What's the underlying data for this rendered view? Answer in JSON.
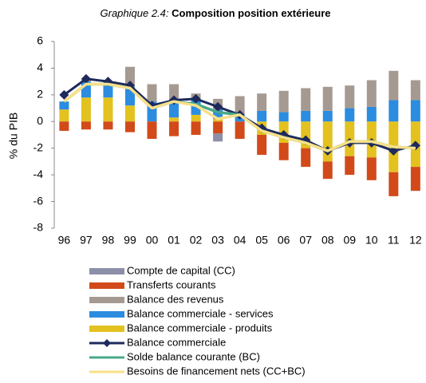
{
  "chart_data": {
    "type": "bar",
    "title_label": "Graphique 2.4:",
    "title": "Composition position  extérieure",
    "y_label": "% du PIB",
    "categories": [
      "96",
      "97",
      "98",
      "99",
      "00",
      "01",
      "02",
      "03",
      "04",
      "05",
      "06",
      "07",
      "08",
      "09",
      "10",
      "11",
      "12"
    ],
    "ylim": [
      -8,
      6
    ],
    "yticks": [
      6,
      4,
      2,
      0,
      -2,
      -4,
      -6,
      -8
    ],
    "grid": false,
    "series": [
      {
        "name": "Compte de capital (CC)",
        "kind": "bar",
        "color": "#8c8fa8",
        "values": [
          0,
          0,
          0,
          0,
          0,
          0,
          0,
          -0.6,
          0,
          0,
          0,
          0,
          0,
          0,
          0,
          0,
          0
        ]
      },
      {
        "name": "Transferts courants",
        "kind": "bar",
        "color": "#d24a1a",
        "values": [
          -0.7,
          -0.6,
          -0.6,
          -0.8,
          -1.3,
          -1.1,
          -1.0,
          -0.9,
          -1.3,
          -1.5,
          -1.3,
          -1.4,
          -1.3,
          -1.4,
          -1.7,
          -1.8,
          -1.8
        ]
      },
      {
        "name": "Balance des revenus",
        "kind": "bar",
        "color": "#a59a92",
        "values": [
          0,
          0.2,
          0,
          1.5,
          1.3,
          1.4,
          0.4,
          0.8,
          1.4,
          1.3,
          1.6,
          1.7,
          1.8,
          1.7,
          2.0,
          2.2,
          1.5
        ]
      },
      {
        "name": "Balance commerciale - services",
        "kind": "bar",
        "color": "#2b8ce0",
        "values": [
          0.6,
          1.2,
          1.2,
          1.4,
          1.5,
          1.1,
          1.2,
          0.7,
          0.5,
          0.8,
          0.7,
          0.8,
          0.8,
          1.0,
          1.1,
          1.6,
          1.6
        ]
      },
      {
        "name": "Balance commerciale - produits",
        "kind": "bar",
        "color": "#e3c21f",
        "values": [
          0.9,
          1.8,
          1.8,
          1.2,
          0,
          0.3,
          0.5,
          0.2,
          0,
          -1.0,
          -1.6,
          -2.0,
          -3.0,
          -2.6,
          -2.7,
          -3.8,
          -3.4
        ]
      },
      {
        "name": "Balance commerciale",
        "kind": "line",
        "marker": "diamond",
        "color": "#1e2a5c",
        "values": [
          2.0,
          3.2,
          3.0,
          2.7,
          1.2,
          1.6,
          1.7,
          1.1,
          0.5,
          -0.5,
          -1.0,
          -1.4,
          -2.2,
          -1.6,
          -1.6,
          -2.2,
          -1.8
        ]
      },
      {
        "name": "Solde balance courante (BC)",
        "kind": "line",
        "color": "#4aa88a",
        "values": [
          1.5,
          2.8,
          2.8,
          2.5,
          1.0,
          1.5,
          1.3,
          0.7,
          0.5,
          -0.7,
          -1.2,
          -1.6,
          -2.2,
          -1.5,
          -1.5,
          -1.9,
          -2.0
        ]
      },
      {
        "name": "Besoins de financement nets (CC+BC)",
        "kind": "line",
        "color": "#f7e08a",
        "values": [
          1.5,
          2.8,
          2.8,
          2.5,
          1.0,
          1.5,
          1.2,
          0.2,
          0.5,
          -0.7,
          -1.2,
          -1.6,
          -2.2,
          -1.5,
          -1.5,
          -1.9,
          -2.0
        ]
      }
    ]
  }
}
